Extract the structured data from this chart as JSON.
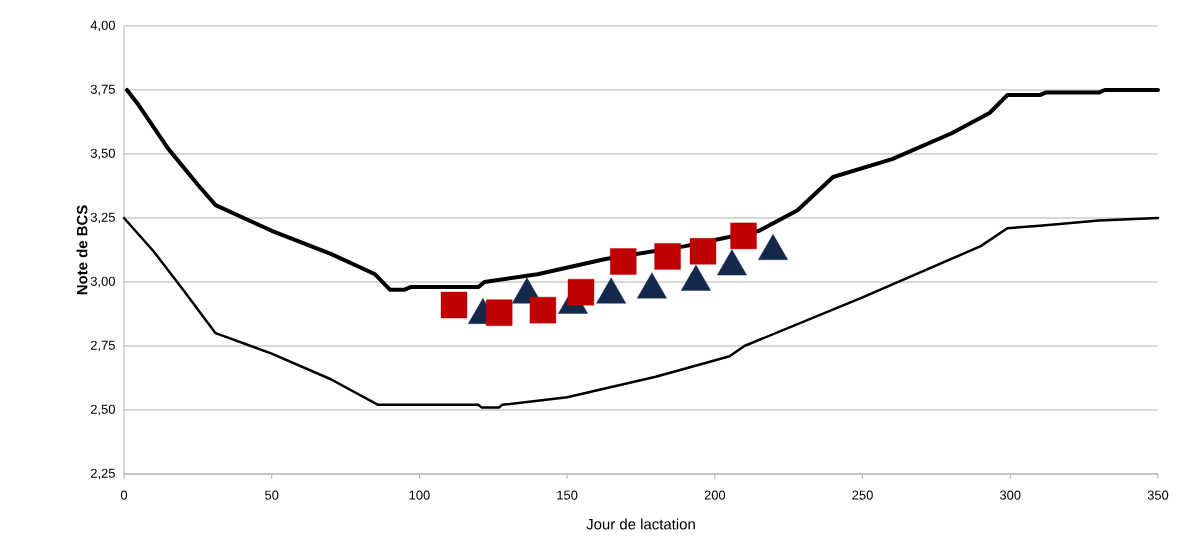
{
  "chart_data": {
    "type": "line",
    "xlabel": "Jour de lactation",
    "ylabel": "Note de BCS",
    "xlim": [
      0,
      350
    ],
    "ylim": [
      2.25,
      4.0
    ],
    "xticks": [
      0,
      50,
      100,
      150,
      200,
      250,
      300,
      350
    ],
    "yticks": [
      {
        "value": 2.25,
        "label": "2,25"
      },
      {
        "value": 2.5,
        "label": "2,50"
      },
      {
        "value": 2.75,
        "label": "2,75"
      },
      {
        "value": 3.0,
        "label": "3,00"
      },
      {
        "value": 3.25,
        "label": "3,25"
      },
      {
        "value": 3.5,
        "label": "3,50"
      },
      {
        "value": 3.75,
        "label": "3,75"
      },
      {
        "value": 4.0,
        "label": "4,00"
      }
    ],
    "grid": "y",
    "legend": false,
    "series": [
      {
        "color": "#000000",
        "x": [
          1,
          5,
          15,
          25,
          31,
          50,
          70,
          85,
          90,
          95,
          97,
          120,
          122,
          140,
          163,
          190,
          215,
          228,
          240,
          260,
          280,
          293,
          299,
          310,
          312,
          330,
          332,
          350
        ],
        "values": [
          3.75,
          3.69,
          3.52,
          3.38,
          3.3,
          3.2,
          3.11,
          3.03,
          2.97,
          2.97,
          2.98,
          2.98,
          3.0,
          3.03,
          3.09,
          3.14,
          3.2,
          3.28,
          3.41,
          3.48,
          3.58,
          3.66,
          3.73,
          3.73,
          3.74,
          3.74,
          3.75,
          3.75
        ]
      },
      {
        "color": "#000000",
        "x": [
          0,
          10,
          20,
          31,
          50,
          70,
          86,
          120,
          121,
          127,
          128,
          150,
          180,
          205,
          210,
          250,
          290,
          299,
          310,
          330,
          350
        ],
        "values": [
          3.25,
          3.12,
          2.97,
          2.8,
          2.72,
          2.62,
          2.52,
          2.52,
          2.51,
          2.51,
          2.52,
          2.55,
          2.63,
          2.71,
          2.75,
          2.94,
          3.14,
          3.21,
          3.22,
          3.24,
          3.25
        ]
      },
      {
        "type": "scatter",
        "marker": "triangle",
        "color": "#14284b",
        "x": [
          121.5,
          136.4,
          152,
          164.9,
          178.7,
          193.6,
          205.8,
          219.7
        ],
        "values": [
          2.87,
          2.95,
          2.91,
          2.95,
          2.97,
          3.0,
          3.06,
          3.12
        ]
      },
      {
        "type": "scatter",
        "marker": "square",
        "color": "#c00000",
        "x": [
          111.7,
          127,
          141.8,
          154.7,
          169,
          184,
          196,
          209.7
        ],
        "values": [
          2.91,
          2.88,
          2.89,
          2.96,
          3.08,
          3.1,
          3.12,
          3.18
        ]
      }
    ]
  }
}
